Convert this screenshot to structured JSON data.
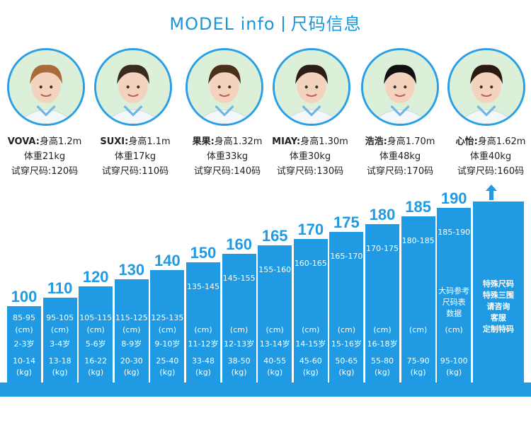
{
  "header": {
    "left": "MODEL  info",
    "right": "尺码信息"
  },
  "models": [
    {
      "name": "VOVA:",
      "height": "身高1.2m",
      "weight": "体重21kg",
      "size": "试穿尺码:120码"
    },
    {
      "name": "SUXI:",
      "height": "身高1.1m",
      "weight": "体重17kg",
      "size": "试穿尺码:110码"
    },
    {
      "name": "果果:",
      "height": "身高1.32m",
      "weight": "体重33kg",
      "size": "试穿尺码:140码"
    },
    {
      "name": "MIAY:",
      "height": "身高1.30m",
      "weight": "体重30kg",
      "size": "试穿尺码:130码"
    },
    {
      "name": "浩浩:",
      "height": "身高1.70m",
      "weight": "体重48kg",
      "size": "试穿尺码:170码"
    },
    {
      "name": "心怡:",
      "height": "身高1.62m",
      "weight": "体重40kg",
      "size": "试穿尺码:160码"
    }
  ],
  "sizes": [
    {
      "size": "100",
      "height_range": "85-95",
      "unit": "(cm)",
      "age": "2-3岁",
      "weight_range": "10-14",
      "weight_unit": "(kg)"
    },
    {
      "size": "110",
      "height_range": "95-105",
      "unit": "(cm)",
      "age": "3-4岁",
      "weight_range": "13-18",
      "weight_unit": "(kg)"
    },
    {
      "size": "120",
      "height_range": "105-115",
      "unit": "(cm)",
      "age": "5-6岁",
      "weight_range": "16-22",
      "weight_unit": "(kg)"
    },
    {
      "size": "130",
      "height_range": "115-125",
      "unit": "(cm)",
      "age": "8-9岁",
      "weight_range": "20-30",
      "weight_unit": "(kg)"
    },
    {
      "size": "140",
      "height_range": "125-135",
      "unit": "(cm)",
      "age": "9-10岁",
      "weight_range": "25-40",
      "weight_unit": "(kg)"
    },
    {
      "size": "150",
      "height_range": "135-145",
      "unit": "(cm)",
      "age": "11-12岁",
      "weight_range": "33-48",
      "weight_unit": "(kg)"
    },
    {
      "size": "160",
      "height_range": "145-155",
      "unit": "(cm)",
      "age": "12-13岁",
      "weight_range": "38-50",
      "weight_unit": "(kg)"
    },
    {
      "size": "165",
      "height_range": "155-160",
      "unit": "(cm)",
      "age": "13-14岁",
      "weight_range": "40-55",
      "weight_unit": "(kg)"
    },
    {
      "size": "170",
      "height_range": "160-165",
      "unit": "(cm)",
      "age": "14-15岁",
      "weight_range": "45-60",
      "weight_unit": "(kg)"
    },
    {
      "size": "175",
      "height_range": "165-170",
      "unit": "(cm)",
      "age": "15-16岁",
      "weight_range": "50-65",
      "weight_unit": "(kg)"
    },
    {
      "size": "180",
      "height_range": "170-175",
      "unit": "(cm)",
      "age": "16-18岁",
      "weight_range": "55-80",
      "weight_unit": "(kg)"
    },
    {
      "size": "185",
      "height_range": "180-185",
      "unit": "(cm)",
      "age": "",
      "weight_range": "75-90",
      "weight_unit": "(kg)"
    },
    {
      "size": "190",
      "height_range": "185-190",
      "unit": "(cm)",
      "age": "",
      "weight_range": "95-100",
      "weight_unit": "(kg)",
      "note": [
        "大码参考",
        "尺码表",
        "数据"
      ]
    }
  ],
  "special": {
    "lines": [
      "特殊尺码",
      "特殊三围",
      "请咨询",
      "客服",
      "定制特码"
    ]
  },
  "colors": {
    "accent": "#1f9ae3",
    "title": "#1996dc"
  }
}
